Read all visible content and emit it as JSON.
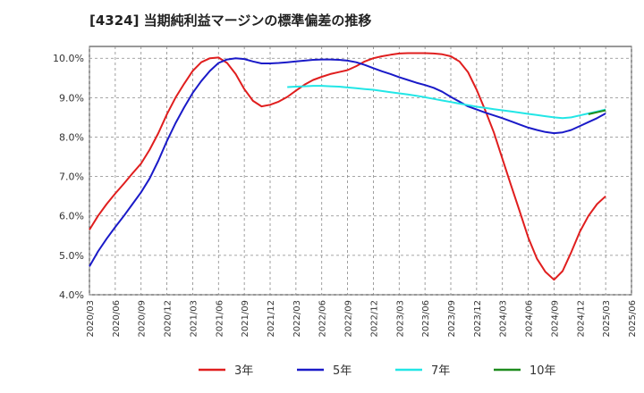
{
  "chart_data": {
    "type": "line",
    "title": "[4324]  当期純利益マージンの標準偏差の推移",
    "ylim": [
      4.0,
      10.3
    ],
    "y_ticks": [
      4.0,
      5.0,
      6.0,
      7.0,
      8.0,
      9.0,
      10.0
    ],
    "y_tick_labels": [
      "4.0%",
      "5.0%",
      "6.0%",
      "7.0%",
      "8.0%",
      "9.0%",
      "10.0%"
    ],
    "x_ticks": [
      "2020/03",
      "2020/06",
      "2020/09",
      "2020/12",
      "2021/03",
      "2021/06",
      "2021/09",
      "2021/12",
      "2022/03",
      "2022/06",
      "2022/09",
      "2022/12",
      "2023/03",
      "2023/06",
      "2023/09",
      "2023/12",
      "2024/03",
      "2024/06",
      "2024/09",
      "2024/12",
      "2025/03",
      "2025/06"
    ],
    "grid": true,
    "legend_position": "bottom",
    "series": [
      {
        "name": "3年",
        "color": "#e01e1e",
        "x": [
          "2020/03",
          "2020/04",
          "2020/05",
          "2020/06",
          "2020/07",
          "2020/08",
          "2020/09",
          "2020/10",
          "2020/11",
          "2020/12",
          "2021/01",
          "2021/02",
          "2021/03",
          "2021/04",
          "2021/05",
          "2021/06",
          "2021/07",
          "2021/08",
          "2021/09",
          "2021/10",
          "2021/11",
          "2021/12",
          "2022/01",
          "2022/02",
          "2022/03",
          "2022/04",
          "2022/05",
          "2022/06",
          "2022/07",
          "2022/08",
          "2022/09",
          "2022/10",
          "2022/11",
          "2022/12",
          "2023/01",
          "2023/02",
          "2023/03",
          "2023/04",
          "2023/05",
          "2023/06",
          "2023/07",
          "2023/08",
          "2023/09",
          "2023/10",
          "2023/11",
          "2023/12",
          "2024/01",
          "2024/02",
          "2024/03",
          "2024/04",
          "2024/05",
          "2024/06",
          "2024/07",
          "2024/08",
          "2024/09",
          "2024/10",
          "2024/11",
          "2024/12",
          "2025/01",
          "2025/02",
          "2025/03"
        ],
        "values": [
          5.65,
          6.0,
          6.3,
          6.57,
          6.82,
          7.08,
          7.33,
          7.68,
          8.1,
          8.58,
          9.0,
          9.35,
          9.68,
          9.9,
          10.0,
          10.02,
          9.88,
          9.6,
          9.22,
          8.92,
          8.78,
          8.82,
          8.9,
          9.02,
          9.18,
          9.33,
          9.45,
          9.53,
          9.6,
          9.65,
          9.7,
          9.8,
          9.92,
          10.0,
          10.05,
          10.09,
          10.12,
          10.13,
          10.13,
          10.13,
          10.12,
          10.1,
          10.05,
          9.92,
          9.65,
          9.2,
          8.68,
          8.12,
          7.45,
          6.78,
          6.12,
          5.45,
          4.92,
          4.58,
          4.38,
          4.6,
          5.08,
          5.6,
          6.0,
          6.3,
          6.5
        ]
      },
      {
        "name": "5年",
        "color": "#1a1ac8",
        "x": [
          "2020/03",
          "2020/04",
          "2020/05",
          "2020/06",
          "2020/07",
          "2020/08",
          "2020/09",
          "2020/10",
          "2020/11",
          "2020/12",
          "2021/01",
          "2021/02",
          "2021/03",
          "2021/04",
          "2021/05",
          "2021/06",
          "2021/07",
          "2021/08",
          "2021/09",
          "2021/10",
          "2021/11",
          "2021/12",
          "2022/01",
          "2022/02",
          "2022/03",
          "2022/04",
          "2022/05",
          "2022/06",
          "2022/07",
          "2022/08",
          "2022/09",
          "2022/10",
          "2022/11",
          "2022/12",
          "2023/01",
          "2023/02",
          "2023/03",
          "2023/04",
          "2023/05",
          "2023/06",
          "2023/07",
          "2023/08",
          "2023/09",
          "2023/10",
          "2023/11",
          "2023/12",
          "2024/01",
          "2024/02",
          "2024/03",
          "2024/04",
          "2024/05",
          "2024/06",
          "2024/07",
          "2024/08",
          "2024/09",
          "2024/10",
          "2024/11",
          "2024/12",
          "2025/01",
          "2025/02",
          "2025/03"
        ],
        "values": [
          4.72,
          5.1,
          5.42,
          5.72,
          6.0,
          6.3,
          6.6,
          6.95,
          7.4,
          7.9,
          8.35,
          8.75,
          9.12,
          9.42,
          9.68,
          9.88,
          9.97,
          10.0,
          9.98,
          9.92,
          9.87,
          9.87,
          9.88,
          9.9,
          9.92,
          9.94,
          9.96,
          9.97,
          9.97,
          9.96,
          9.94,
          9.9,
          9.83,
          9.75,
          9.67,
          9.6,
          9.52,
          9.45,
          9.38,
          9.32,
          9.25,
          9.15,
          9.02,
          8.9,
          8.78,
          8.7,
          8.62,
          8.55,
          8.48,
          8.4,
          8.32,
          8.24,
          8.18,
          8.13,
          8.1,
          8.12,
          8.18,
          8.28,
          8.38,
          8.48,
          8.6
        ]
      },
      {
        "name": "7年",
        "color": "#22e6e6",
        "x": [
          "2022/02",
          "2022/03",
          "2022/04",
          "2022/05",
          "2022/06",
          "2022/07",
          "2022/08",
          "2022/09",
          "2022/10",
          "2022/11",
          "2022/12",
          "2023/01",
          "2023/02",
          "2023/03",
          "2023/04",
          "2023/05",
          "2023/06",
          "2023/07",
          "2023/08",
          "2023/09",
          "2023/10",
          "2023/11",
          "2023/12",
          "2024/01",
          "2024/02",
          "2024/03",
          "2024/04",
          "2024/05",
          "2024/06",
          "2024/07",
          "2024/08",
          "2024/09",
          "2024/10",
          "2024/11",
          "2024/12",
          "2025/01",
          "2025/02",
          "2025/03"
        ],
        "values": [
          9.27,
          9.28,
          9.29,
          9.3,
          9.3,
          9.29,
          9.28,
          9.26,
          9.24,
          9.22,
          9.2,
          9.17,
          9.14,
          9.11,
          9.08,
          9.05,
          9.01,
          8.97,
          8.93,
          8.89,
          8.85,
          8.81,
          8.77,
          8.74,
          8.71,
          8.68,
          8.65,
          8.62,
          8.59,
          8.56,
          8.53,
          8.5,
          8.48,
          8.5,
          8.55,
          8.6,
          8.65,
          8.7
        ]
      },
      {
        "name": "10年",
        "color": "#1e8c1e",
        "x": [
          "2025/01",
          "2025/02",
          "2025/03"
        ],
        "values": [
          8.58,
          8.63,
          8.68
        ]
      }
    ]
  }
}
